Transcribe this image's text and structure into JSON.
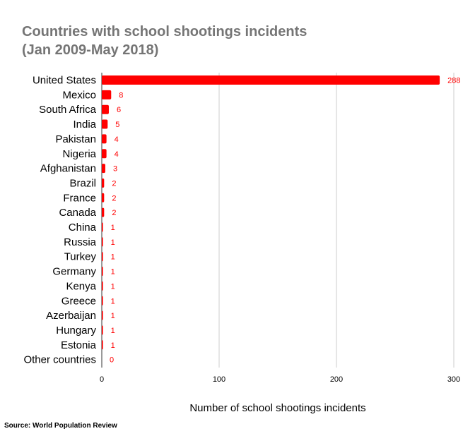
{
  "colors": {
    "bar": "#ff0000",
    "data_label": "#ff0000",
    "title": "#757575",
    "text": "#000000",
    "grid": "#cccccc"
  },
  "chart_data": {
    "type": "bar",
    "orientation": "horizontal",
    "title": "Countries with school shootings incidents",
    "subtitle": "(Jan 2009-May 2018)",
    "xlabel": "Number of school shootings incidents",
    "ylabel": "",
    "xlim": [
      0,
      300
    ],
    "xticks": [
      "0",
      "100",
      "200",
      "300"
    ],
    "grid": true,
    "legend": "none",
    "categories": [
      "United States",
      "Mexico",
      "South Africa",
      "India",
      "Pakistan",
      "Nigeria",
      "Afghanistan",
      "Brazil",
      "France",
      "Canada",
      "China",
      "Russia",
      "Turkey",
      "Germany",
      "Kenya",
      "Greece",
      "Azerbaijan",
      "Hungary",
      "Estonia",
      "Other countries"
    ],
    "values": [
      288,
      8,
      6,
      5,
      4,
      4,
      3,
      2,
      2,
      2,
      1,
      1,
      1,
      1,
      1,
      1,
      1,
      1,
      1,
      0
    ]
  },
  "source": "Source: World Population Review"
}
